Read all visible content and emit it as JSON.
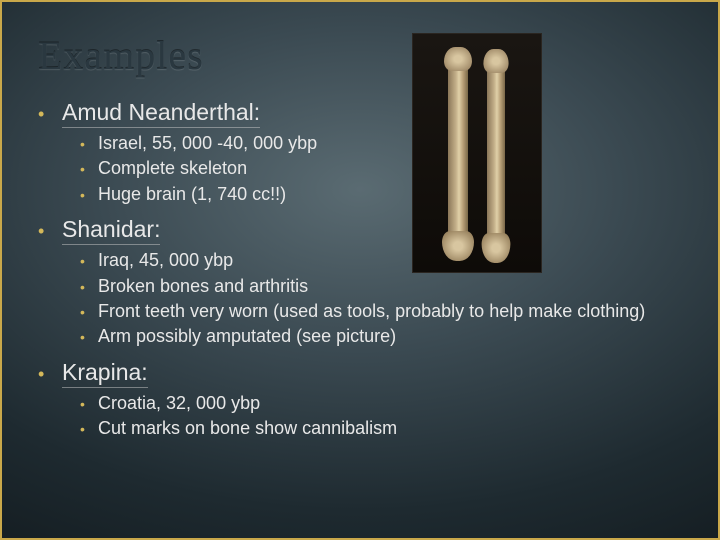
{
  "title": "Examples",
  "sections": [
    {
      "heading": "Amud Neanderthal:",
      "items": [
        "Israel, 55, 000 -40, 000 ybp",
        "Complete skeleton",
        "Huge brain (1, 740 cc!!)"
      ]
    },
    {
      "heading": "Shanidar:",
      "items": [
        "Iraq, 45, 000 ybp",
        "Broken bones and arthritis",
        "Front teeth very worn (used as tools, probably to help make clothing)",
        "Arm possibly amputated (see picture)"
      ]
    },
    {
      "heading": "Krapina:",
      "items": [
        "Croatia, 32, 000 ybp",
        "Cut marks on bone show cannibalism"
      ]
    }
  ],
  "styling": {
    "slide_width": 720,
    "slide_height": 540,
    "border_color": "#c9a84a",
    "title_color": "#2a3840",
    "title_fontsize": 40,
    "text_color": "#e8e8e8",
    "heading_fontsize": 23,
    "body_fontsize": 18,
    "bullet_color": "#d4b85a",
    "background_gradient": [
      "#5a6b72",
      "#3b4a52",
      "#1e2a30",
      "#0a0f12"
    ]
  }
}
